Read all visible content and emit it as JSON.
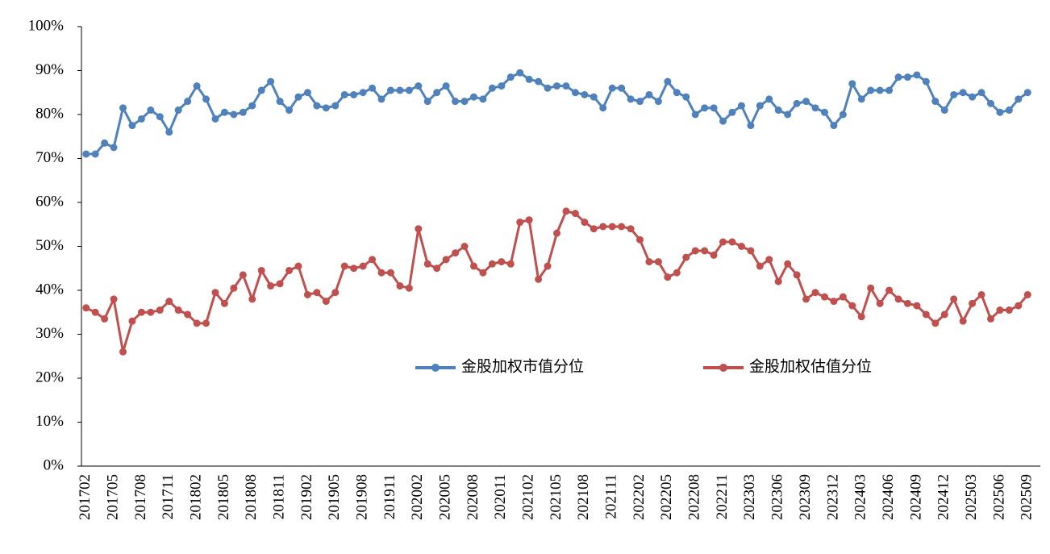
{
  "chart_data": {
    "type": "line",
    "categories": [
      "201702",
      null,
      null,
      "201705",
      null,
      null,
      "201708",
      null,
      null,
      "201711",
      null,
      null,
      "201802",
      null,
      null,
      "201805",
      null,
      null,
      "201808",
      null,
      null,
      "201811",
      null,
      null,
      "201902",
      null,
      null,
      "201905",
      null,
      null,
      "201908",
      null,
      null,
      "201911",
      null,
      null,
      "202002",
      null,
      null,
      "202005",
      null,
      null,
      "202008",
      null,
      null,
      "202011",
      null,
      null,
      "202102",
      null,
      null,
      "202105",
      null,
      null,
      "202108",
      null,
      null,
      "202111",
      null,
      null,
      "202202",
      null,
      null,
      "202205",
      null,
      null,
      "202208",
      null,
      null,
      "202211",
      null,
      null,
      "202303",
      null,
      null,
      "202306",
      null,
      null,
      "202309",
      null,
      null,
      "202312",
      null,
      null,
      "202403",
      null,
      null,
      "202406",
      null,
      null,
      "202409",
      null,
      null,
      "202412",
      null,
      null,
      "202503",
      null,
      null,
      "202506",
      null,
      null,
      "202509"
    ],
    "series": [
      {
        "name": "金股加权市值分位",
        "color": "#4f81bd",
        "values": [
          71,
          71,
          73.5,
          72.5,
          81.5,
          77.5,
          79,
          81,
          79.5,
          76,
          81,
          83,
          86.5,
          83.5,
          79,
          80.5,
          80,
          80.5,
          82,
          85.5,
          87.5,
          83,
          81,
          84,
          85,
          82,
          81.5,
          82,
          84.5,
          84.5,
          85,
          86,
          83.5,
          85.5,
          85.5,
          85.5,
          86.5,
          83,
          85,
          86.5,
          83,
          83,
          84,
          83.5,
          86,
          86.5,
          88.5,
          89.5,
          88,
          87.5,
          86,
          86.5,
          86.5,
          85,
          84.5,
          84,
          81.5,
          86,
          86,
          83.5,
          83,
          84.5,
          83,
          87.5,
          85,
          84,
          80,
          81.5,
          81.5,
          78.5,
          80.5,
          82,
          77.5,
          82,
          83.5,
          81,
          80,
          82.5,
          83,
          81.5,
          80.5,
          77.5,
          80,
          87,
          83.5,
          85.5,
          85.5,
          85.5,
          88.5,
          88.5,
          89,
          87.5,
          83,
          81,
          84.5,
          85,
          84,
          85,
          82.5,
          80.5,
          81,
          83.5,
          85
        ]
      },
      {
        "name": "金股加权估值分位",
        "color": "#c0504d",
        "values": [
          36,
          35,
          33.5,
          38,
          26,
          33,
          35,
          35,
          35.5,
          37.5,
          35.5,
          34.5,
          32.5,
          32.5,
          39.5,
          37,
          40.5,
          43.5,
          38,
          44.5,
          41,
          41.5,
          44.5,
          45.5,
          39,
          39.5,
          37.5,
          39.5,
          45.5,
          45,
          45.5,
          47,
          44,
          44,
          41,
          40.5,
          54,
          46,
          45,
          47,
          48.5,
          50,
          45.5,
          44,
          46,
          46.5,
          46,
          55.5,
          56,
          42.5,
          45.5,
          53,
          58,
          57.5,
          55.5,
          54,
          54.5,
          54.5,
          54.5,
          54,
          51.5,
          46.5,
          46.5,
          43,
          44,
          47.5,
          49,
          49,
          48,
          51,
          51,
          50,
          49,
          45.5,
          47,
          42,
          46,
          43.5,
          38,
          39.5,
          38.5,
          37.5,
          38.5,
          36.5,
          34,
          40.5,
          37,
          40,
          38,
          37,
          36.5,
          34.5,
          32.5,
          34.5,
          38,
          33,
          37,
          39,
          33.5,
          35.5,
          35.5,
          36.5,
          39
        ]
      }
    ],
    "ylim": [
      0,
      100
    ],
    "yticks": [
      {
        "value": 0,
        "label": "0%"
      },
      {
        "value": 10,
        "label": "10%"
      },
      {
        "value": 20,
        "label": "20%"
      },
      {
        "value": 30,
        "label": "30%"
      },
      {
        "value": 40,
        "label": "40%"
      },
      {
        "value": 50,
        "label": "50%"
      },
      {
        "value": 60,
        "label": "60%"
      },
      {
        "value": 70,
        "label": "70%"
      },
      {
        "value": 80,
        "label": "80%"
      },
      {
        "value": 90,
        "label": "90%"
      },
      {
        "value": 100,
        "label": "100%"
      }
    ],
    "grid": false
  }
}
